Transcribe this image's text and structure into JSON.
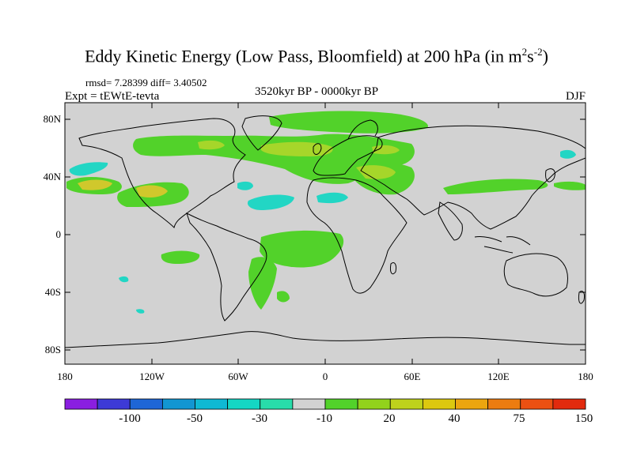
{
  "header": {
    "title_main": "Eddy Kinetic Energy (Low Pass, Bloomfield) at 200 hPa (in m",
    "title_sup1": "2",
    "title_mid": "s",
    "title_sup2": "-2",
    "title_end": ")",
    "stats": "rmsd= 7.28399 diff= 3.40502",
    "expt": "Expt = tEWtE-tevta",
    "period": "3520kyr BP - 0000kyr BP",
    "season": "DJF"
  },
  "axes": {
    "lat_labels": [
      "80N",
      "40N",
      "0",
      "40S",
      "80S"
    ],
    "lon_labels": [
      "180",
      "120W",
      "60W",
      "0",
      "60E",
      "120E",
      "180"
    ]
  },
  "colorbar": {
    "labels": [
      "-100",
      "-50",
      "-30",
      "-10",
      "20",
      "40",
      "75",
      "150"
    ],
    "colors": [
      "#8a1ee0",
      "#3d3ad6",
      "#1e66d6",
      "#1296d2",
      "#0fb9d4",
      "#14d6c4",
      "#28dcaa",
      "#d2d2d2",
      "#52d22a",
      "#92d21c",
      "#bed21c",
      "#dcc80f",
      "#eca50f",
      "#ec7c10",
      "#ec5012",
      "#e22a0e"
    ]
  },
  "colors": {
    "ocean_gray": "#d2d2d2",
    "pos_green": "#52d22a",
    "pos_lightgreen": "#a6d62a",
    "pos_yellow": "#d0c82c",
    "neg_cyan": "#22d6c4"
  }
}
